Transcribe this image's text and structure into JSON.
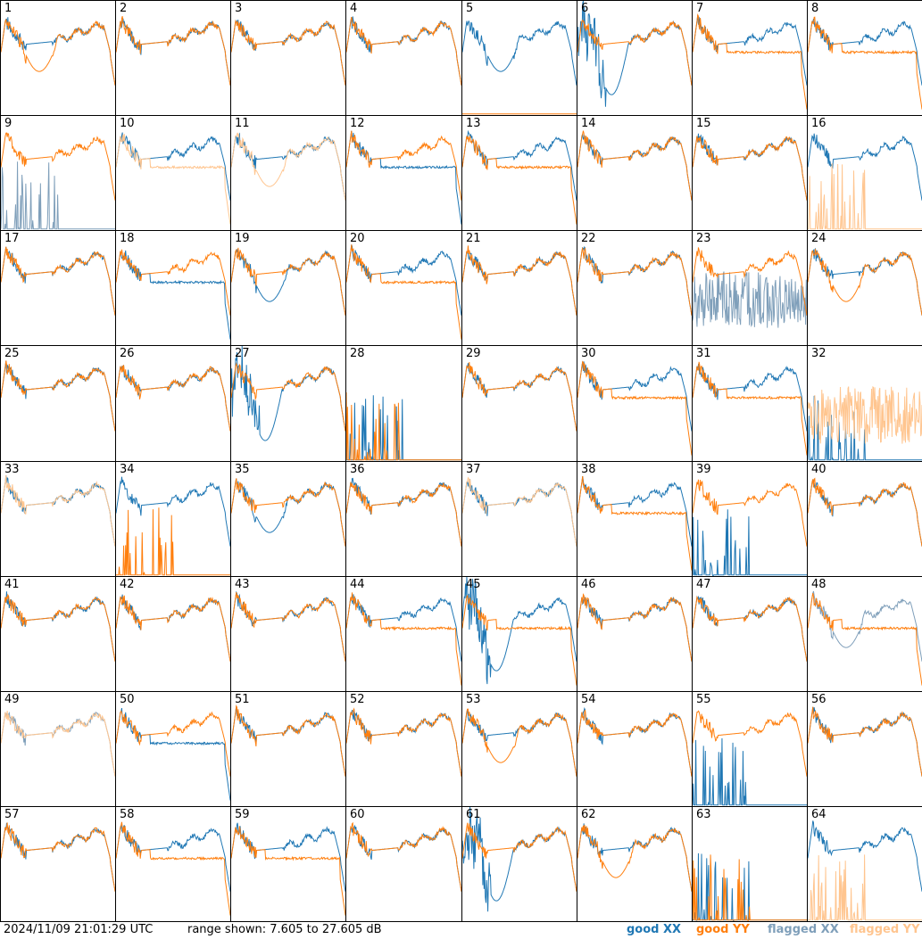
{
  "footer": {
    "timestamp": "2024/11/09 21:01:29 UTC",
    "range_text": "range shown: 7.605 to 27.605 dB"
  },
  "legend": [
    {
      "label": "good XX",
      "color": "#1f77b4"
    },
    {
      "label": "good YY",
      "color": "#ff7f0e"
    },
    {
      "label": "flagged XX",
      "color": "#7f9fba"
    },
    {
      "label": "flagged YY",
      "color": "#ffc58f"
    }
  ],
  "colors": {
    "good_xx": "#1f77b4",
    "good_yy": "#ff7f0e",
    "flagged_xx": "#7f9fba",
    "flagged_yy": "#ffc58f"
  },
  "chart_data": {
    "type": "line",
    "ylim": [
      7.605,
      27.605
    ],
    "yunit": "dB",
    "panels": [
      {
        "id": "1",
        "xx": "good",
        "yy": "good",
        "xx_shape": "normal",
        "yy_shape": "dip"
      },
      {
        "id": "2",
        "xx": "good",
        "yy": "good",
        "xx_shape": "normal",
        "yy_shape": "normal"
      },
      {
        "id": "3",
        "xx": "good",
        "yy": "good",
        "xx_shape": "normal",
        "yy_shape": "normal"
      },
      {
        "id": "4",
        "xx": "good",
        "yy": "good",
        "xx_shape": "normal",
        "yy_shape": "normal"
      },
      {
        "id": "5",
        "xx": "good",
        "yy": "good",
        "xx_shape": "dip",
        "yy_shape": "flat"
      },
      {
        "id": "6",
        "xx": "good",
        "yy": "good",
        "xx_shape": "deepdip",
        "yy_shape": "normal"
      },
      {
        "id": "7",
        "xx": "good",
        "yy": "good",
        "xx_shape": "normal",
        "yy_shape": "lowtail"
      },
      {
        "id": "8",
        "xx": "good",
        "yy": "good",
        "xx_shape": "normal",
        "yy_shape": "lowtail"
      },
      {
        "id": "9",
        "xx": "flagged",
        "yy": "good",
        "xx_shape": "spikes",
        "yy_shape": "normal"
      },
      {
        "id": "10",
        "xx": "good",
        "yy": "flagged",
        "xx_shape": "normal",
        "yy_shape": "lowtail"
      },
      {
        "id": "11",
        "xx": "good",
        "yy": "flagged",
        "xx_shape": "normal",
        "yy_shape": "dip"
      },
      {
        "id": "12",
        "xx": "good",
        "yy": "good",
        "xx_shape": "lowtail",
        "yy_shape": "normal"
      },
      {
        "id": "13",
        "xx": "good",
        "yy": "good",
        "xx_shape": "normal",
        "yy_shape": "lowtail"
      },
      {
        "id": "14",
        "xx": "good",
        "yy": "good",
        "xx_shape": "normal",
        "yy_shape": "normal"
      },
      {
        "id": "15",
        "xx": "good",
        "yy": "good",
        "xx_shape": "normal",
        "yy_shape": "normal"
      },
      {
        "id": "16",
        "xx": "good",
        "yy": "flagged",
        "xx_shape": "normal",
        "yy_shape": "spikes"
      },
      {
        "id": "17",
        "xx": "good",
        "yy": "good",
        "xx_shape": "normal",
        "yy_shape": "normal"
      },
      {
        "id": "18",
        "xx": "good",
        "yy": "good",
        "xx_shape": "lowtail",
        "yy_shape": "normal"
      },
      {
        "id": "19",
        "xx": "good",
        "yy": "good",
        "xx_shape": "dip",
        "yy_shape": "normal"
      },
      {
        "id": "20",
        "xx": "good",
        "yy": "good",
        "xx_shape": "normal",
        "yy_shape": "lowtail"
      },
      {
        "id": "21",
        "xx": "good",
        "yy": "good",
        "xx_shape": "normal",
        "yy_shape": "normal"
      },
      {
        "id": "22",
        "xx": "good",
        "yy": "good",
        "xx_shape": "normal",
        "yy_shape": "normal"
      },
      {
        "id": "23",
        "xx": "flagged",
        "yy": "good",
        "xx_shape": "noise",
        "yy_shape": "normal"
      },
      {
        "id": "24",
        "xx": "good",
        "yy": "good",
        "xx_shape": "normal",
        "yy_shape": "dip"
      },
      {
        "id": "25",
        "xx": "good",
        "yy": "good",
        "xx_shape": "normal",
        "yy_shape": "normal"
      },
      {
        "id": "26",
        "xx": "good",
        "yy": "good",
        "xx_shape": "normal",
        "yy_shape": "normal"
      },
      {
        "id": "27",
        "xx": "good",
        "yy": "good",
        "xx_shape": "deepdip",
        "yy_shape": "normal"
      },
      {
        "id": "28",
        "xx": "good",
        "yy": "good",
        "xx_shape": "spikes",
        "yy_shape": "spikes"
      },
      {
        "id": "29",
        "xx": "good",
        "yy": "good",
        "xx_shape": "normal",
        "yy_shape": "normal"
      },
      {
        "id": "30",
        "xx": "good",
        "yy": "good",
        "xx_shape": "normal",
        "yy_shape": "lowtail"
      },
      {
        "id": "31",
        "xx": "good",
        "yy": "good",
        "xx_shape": "normal",
        "yy_shape": "lowtail"
      },
      {
        "id": "32",
        "xx": "good",
        "yy": "flagged",
        "xx_shape": "spikes",
        "yy_shape": "noise"
      },
      {
        "id": "33",
        "xx": "good",
        "yy": "flagged",
        "xx_shape": "normal",
        "yy_shape": "normal"
      },
      {
        "id": "34",
        "xx": "good",
        "yy": "good",
        "xx_shape": "normal",
        "yy_shape": "spikes"
      },
      {
        "id": "35",
        "xx": "good",
        "yy": "good",
        "xx_shape": "dip",
        "yy_shape": "normal"
      },
      {
        "id": "36",
        "xx": "good",
        "yy": "good",
        "xx_shape": "normal",
        "yy_shape": "normal"
      },
      {
        "id": "37",
        "xx": "good",
        "yy": "flagged",
        "xx_shape": "normal",
        "yy_shape": "normal"
      },
      {
        "id": "38",
        "xx": "good",
        "yy": "good",
        "xx_shape": "normal",
        "yy_shape": "lowtail"
      },
      {
        "id": "39",
        "xx": "good",
        "yy": "good",
        "xx_shape": "spikes",
        "yy_shape": "normal"
      },
      {
        "id": "40",
        "xx": "good",
        "yy": "good",
        "xx_shape": "normal",
        "yy_shape": "normal"
      },
      {
        "id": "41",
        "xx": "good",
        "yy": "good",
        "xx_shape": "normal",
        "yy_shape": "normal"
      },
      {
        "id": "42",
        "xx": "good",
        "yy": "good",
        "xx_shape": "normal",
        "yy_shape": "normal"
      },
      {
        "id": "43",
        "xx": "good",
        "yy": "good",
        "xx_shape": "normal",
        "yy_shape": "normal"
      },
      {
        "id": "44",
        "xx": "good",
        "yy": "good",
        "xx_shape": "normal",
        "yy_shape": "lowtail"
      },
      {
        "id": "45",
        "xx": "good",
        "yy": "good",
        "xx_shape": "deepdip",
        "yy_shape": "lowtail"
      },
      {
        "id": "46",
        "xx": "good",
        "yy": "good",
        "xx_shape": "normal",
        "yy_shape": "normal"
      },
      {
        "id": "47",
        "xx": "good",
        "yy": "good",
        "xx_shape": "normal",
        "yy_shape": "normal"
      },
      {
        "id": "48",
        "xx": "flagged",
        "yy": "good",
        "xx_shape": "dip",
        "yy_shape": "lowtail"
      },
      {
        "id": "49",
        "xx": "flagged",
        "yy": "flagged",
        "xx_shape": "normal",
        "yy_shape": "normal"
      },
      {
        "id": "50",
        "xx": "good",
        "yy": "good",
        "xx_shape": "lowtail",
        "yy_shape": "normal"
      },
      {
        "id": "51",
        "xx": "good",
        "yy": "good",
        "xx_shape": "normal",
        "yy_shape": "normal"
      },
      {
        "id": "52",
        "xx": "good",
        "yy": "good",
        "xx_shape": "normal",
        "yy_shape": "normal"
      },
      {
        "id": "53",
        "xx": "good",
        "yy": "good",
        "xx_shape": "normal",
        "yy_shape": "dip"
      },
      {
        "id": "54",
        "xx": "good",
        "yy": "good",
        "xx_shape": "normal",
        "yy_shape": "normal"
      },
      {
        "id": "55",
        "xx": "good",
        "yy": "good",
        "xx_shape": "spikes",
        "yy_shape": "normal"
      },
      {
        "id": "56",
        "xx": "good",
        "yy": "good",
        "xx_shape": "normal",
        "yy_shape": "normal"
      },
      {
        "id": "57",
        "xx": "good",
        "yy": "good",
        "xx_shape": "normal",
        "yy_shape": "normal"
      },
      {
        "id": "58",
        "xx": "good",
        "yy": "good",
        "xx_shape": "normal",
        "yy_shape": "lowtail"
      },
      {
        "id": "59",
        "xx": "good",
        "yy": "good",
        "xx_shape": "normal",
        "yy_shape": "lowtail"
      },
      {
        "id": "60",
        "xx": "good",
        "yy": "good",
        "xx_shape": "normal",
        "yy_shape": "normal"
      },
      {
        "id": "61",
        "xx": "good",
        "yy": "good",
        "xx_shape": "deepdip",
        "yy_shape": "normal"
      },
      {
        "id": "62",
        "xx": "good",
        "yy": "good",
        "xx_shape": "normal",
        "yy_shape": "dip"
      },
      {
        "id": "63",
        "xx": "good",
        "yy": "good",
        "xx_shape": "spikes",
        "yy_shape": "spikes"
      },
      {
        "id": "64",
        "xx": "good",
        "yy": "flagged",
        "xx_shape": "normal",
        "yy_shape": "spikes"
      }
    ]
  }
}
